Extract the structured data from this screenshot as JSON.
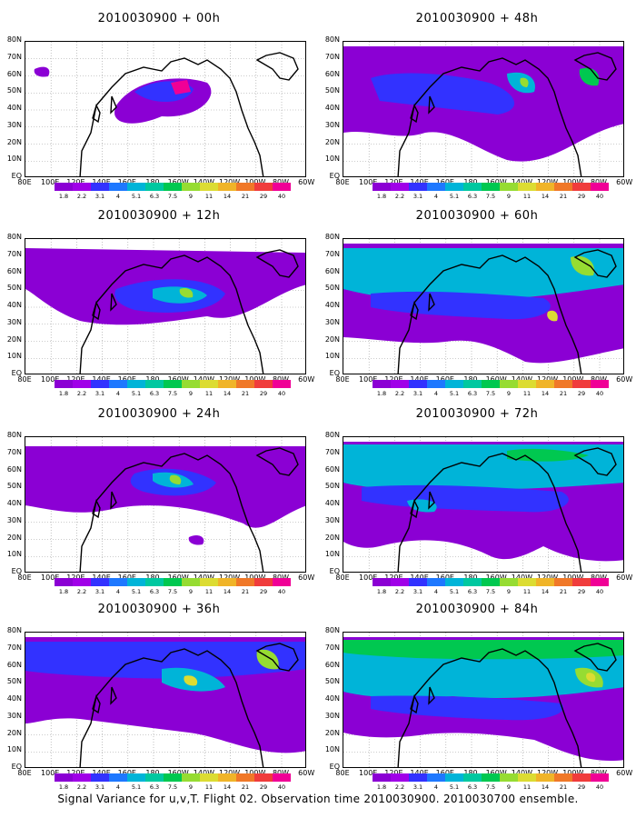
{
  "caption": "Signal Variance for u,v,T. Flight 02. Observation time 2010030900. 2010030700 ensemble.",
  "lat_labels": [
    "80N",
    "70N",
    "60N",
    "50N",
    "40N",
    "30N",
    "20N",
    "10N",
    "EQ"
  ],
  "lon_labels": [
    "80E",
    "100E",
    "120E",
    "140E",
    "160E",
    "180",
    "160W",
    "140W",
    "120W",
    "100W",
    "80W",
    "60W"
  ],
  "colorbar": {
    "colors": [
      "#8b00d4",
      "#a000e8",
      "#3232ff",
      "#1e78ff",
      "#00b4d8",
      "#00c8a0",
      "#00c850",
      "#96dc32",
      "#dcdc32",
      "#f0b428",
      "#f07828",
      "#f03c3c",
      "#f00096"
    ],
    "labels": [
      "1.8",
      "2.2",
      "3.1",
      "4",
      "5.1",
      "6.3",
      "7.5",
      "9",
      "11",
      "14",
      "21",
      "29",
      "40"
    ]
  },
  "panels": [
    {
      "title": "2010030900 + 00h"
    },
    {
      "title": "2010030900 + 48h"
    },
    {
      "title": "2010030900 + 12h"
    },
    {
      "title": "2010030900 + 60h"
    },
    {
      "title": "2010030900 + 24h"
    },
    {
      "title": "2010030900 + 72h"
    },
    {
      "title": "2010030900 + 36h"
    },
    {
      "title": "2010030900 + 84h"
    }
  ]
}
